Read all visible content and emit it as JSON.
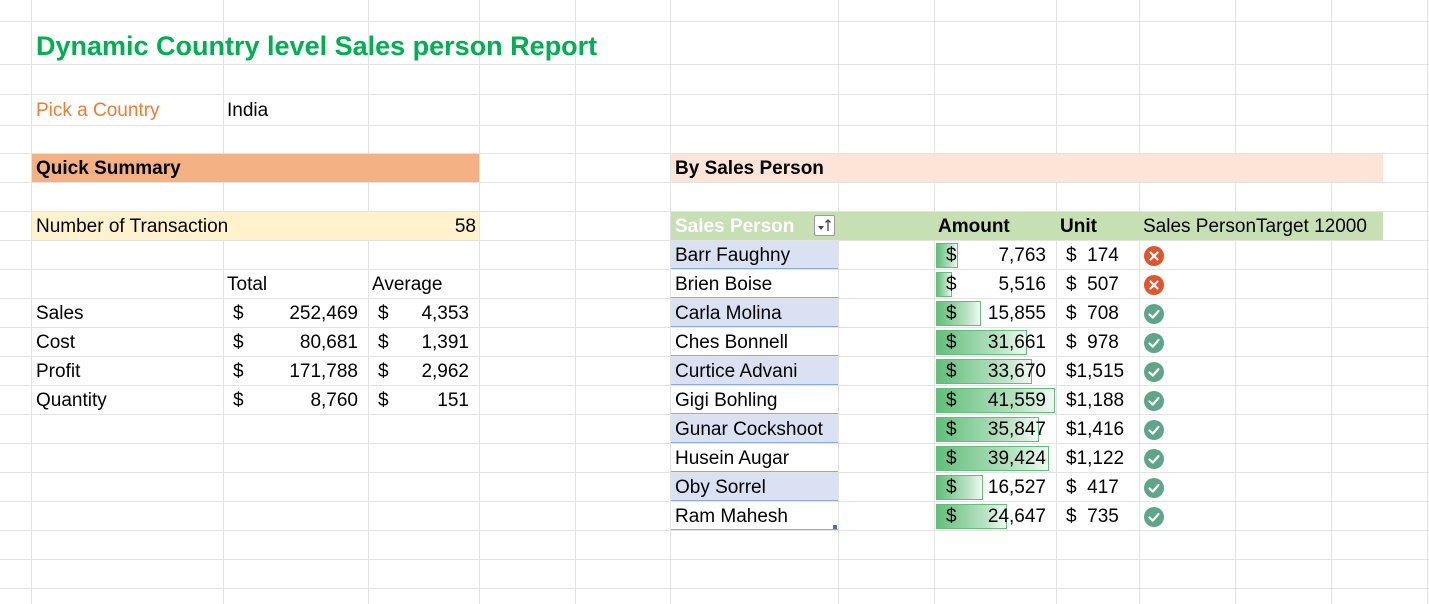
{
  "report": {
    "title": "Dynamic Country level Sales person Report",
    "pick_label": "Pick a Country",
    "country": "India"
  },
  "summary": {
    "header": "Quick Summary",
    "transactions_label": "Number of Transaction",
    "transactions_value": "58",
    "col_total": "Total",
    "col_average": "Average",
    "rows": [
      {
        "label": "Sales",
        "cur1": "$",
        "total": "252,469",
        "cur2": "$",
        "average": "4,353"
      },
      {
        "label": "Cost",
        "cur1": "$",
        "total": "80,681",
        "cur2": "$",
        "average": "1,391"
      },
      {
        "label": "Profit",
        "cur1": "$",
        "total": "171,788",
        "cur2": "$",
        "average": "2,962"
      },
      {
        "label": "Quantity",
        "cur1": "$",
        "total": "8,760",
        "cur2": "$",
        "average": "151"
      }
    ]
  },
  "by_person": {
    "header": "By Sales Person",
    "col_person": "Sales Person",
    "col_amount": "Amount",
    "col_unit": "Unit",
    "col_target": "Sales PersonTarget 12000",
    "target": 12000,
    "bar_max": 41559,
    "rows": [
      {
        "name": "Barr Faughny",
        "cur": "$",
        "amount": 7763,
        "amount_text": "7,763",
        "unit": "$  174",
        "met": false
      },
      {
        "name": "Brien Boise",
        "cur": "$",
        "amount": 5516,
        "amount_text": "5,516",
        "unit": "$  507",
        "met": false
      },
      {
        "name": "Carla Molina",
        "cur": "$",
        "amount": 15855,
        "amount_text": "15,855",
        "unit": "$  708",
        "met": true
      },
      {
        "name": "Ches Bonnell",
        "cur": "$",
        "amount": 31661,
        "amount_text": "31,661",
        "unit": "$  978",
        "met": true
      },
      {
        "name": "Curtice Advani",
        "cur": "$",
        "amount": 33670,
        "amount_text": "33,670",
        "unit": "$1,515",
        "met": true
      },
      {
        "name": "Gigi Bohling",
        "cur": "$",
        "amount": 41559,
        "amount_text": "41,559",
        "unit": "$1,188",
        "met": true
      },
      {
        "name": "Gunar Cockshoot",
        "cur": "$",
        "amount": 35847,
        "amount_text": "35,847",
        "unit": "$1,416",
        "met": true
      },
      {
        "name": "Husein Augar",
        "cur": "$",
        "amount": 39424,
        "amount_text": "39,424",
        "unit": "$1,122",
        "met": true
      },
      {
        "name": "Oby Sorrel",
        "cur": "$",
        "amount": 16527,
        "amount_text": "16,527",
        "unit": "$  417",
        "met": true
      },
      {
        "name": "Ram Mahesh",
        "cur": "$",
        "amount": 24647,
        "amount_text": "24,647",
        "unit": "$  735",
        "met": true
      }
    ]
  },
  "colors": {
    "title_green": "#00b050",
    "orange_text": "#ed7d31",
    "summary_header_fill": "#f4b183",
    "person_header_fill": "#fce4d6",
    "transactions_fill": "#fff2cc",
    "table_header_fill": "#c6e0b4",
    "row_band_fill": "#d9e1f2",
    "cross_red": "#e0552f",
    "check_green": "#5fa58a"
  },
  "icons": {
    "filter": "filter-sort-ascending-icon",
    "met": "check-circle-icon",
    "not_met": "cross-circle-icon"
  }
}
